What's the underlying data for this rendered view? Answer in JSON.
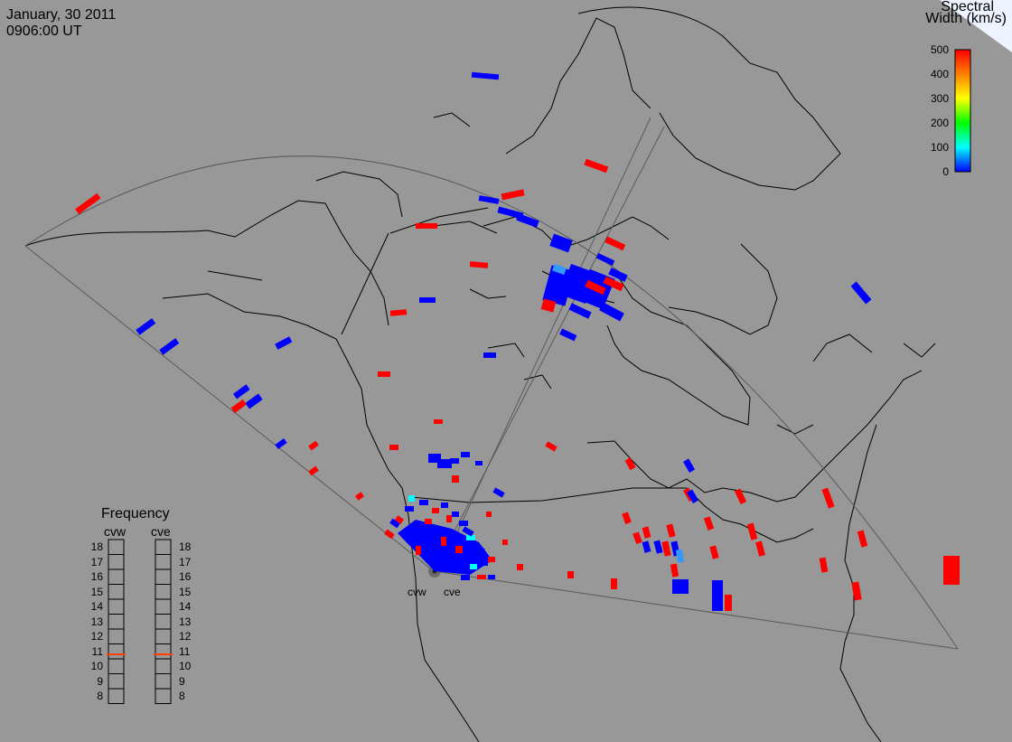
{
  "header": {
    "date": "January, 30 2011",
    "time": "0906:00 UT"
  },
  "colorbar": {
    "title_line1": "Spectral",
    "title_line2": "Width (km/s)",
    "ticks": [
      "500",
      "400",
      "300",
      "200",
      "100",
      "0"
    ],
    "min": 0,
    "max": 500,
    "colors": [
      "#0000ff",
      "#00ffff",
      "#00ff00",
      "#ffff00",
      "#ff8000",
      "#ff0000"
    ]
  },
  "frequency": {
    "title": "Frequency",
    "radars": [
      "cvw",
      "cve"
    ],
    "scale": [
      "18",
      "17",
      "16",
      "15",
      "14",
      "13",
      "12",
      "11",
      "10",
      "9",
      "8"
    ],
    "cvw_mhz": 10.8,
    "cve_mhz": 10.8,
    "marker_color": "#ff4000"
  },
  "sites": {
    "cvw": "cvw",
    "cve": "cve"
  },
  "colors": {
    "background": "#989898",
    "scatter_blue": "#0000ff",
    "scatter_red": "#ff0000",
    "scatter_cyan": "#00ffff"
  }
}
